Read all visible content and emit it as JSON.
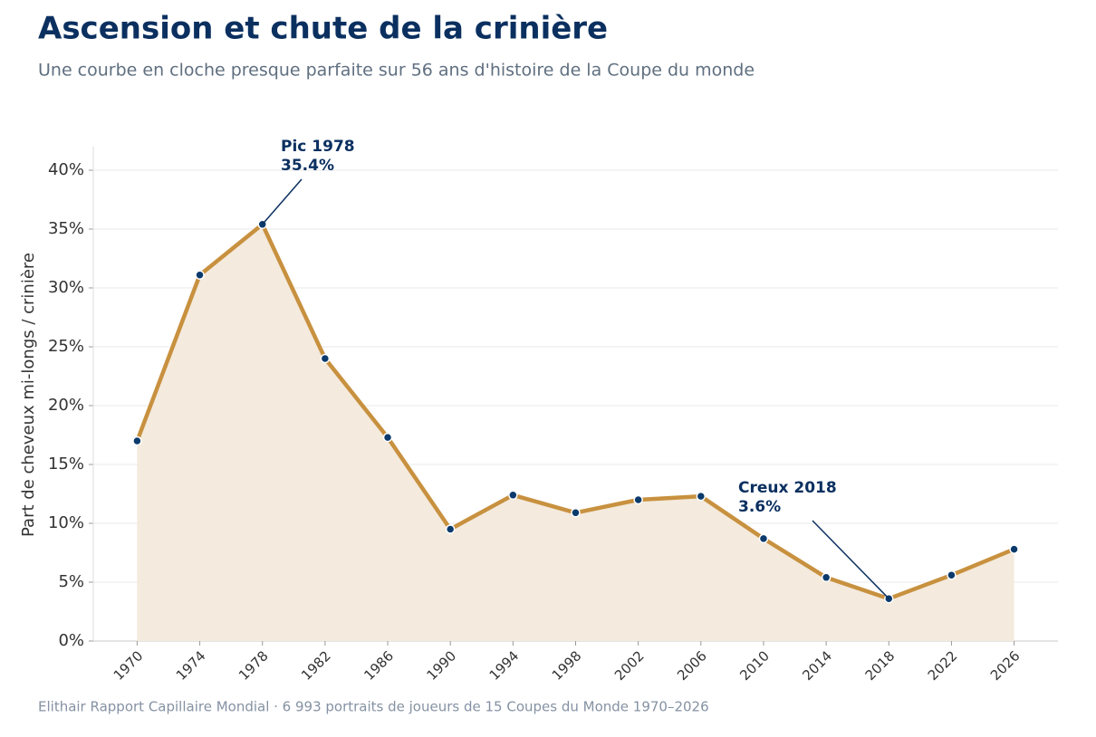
{
  "chart_data": {
    "type": "line",
    "title": "Ascension et chute de la crinière",
    "subtitle": "Une courbe en cloche presque parfaite sur 56 ans d'histoire de la Coupe du monde",
    "ylabel": "Part de cheveux mi-longs / crinière",
    "source": "Elithair Rapport Capillaire Mondial  ·  6 993 portraits de joueurs de 15 Coupes du Monde 1970–2026",
    "x": [
      1970,
      1974,
      1978,
      1982,
      1986,
      1990,
      1994,
      1998,
      2002,
      2006,
      2010,
      2014,
      2018,
      2022,
      2026
    ],
    "series": [
      {
        "name": "Part",
        "color": "#c8913f",
        "fill": "#f4eadd",
        "marker_color": "#0b3a6b",
        "values": [
          17.0,
          31.1,
          35.4,
          24.0,
          17.3,
          9.5,
          12.4,
          10.9,
          12.0,
          12.3,
          8.7,
          5.4,
          3.6,
          5.6,
          7.8
        ]
      }
    ],
    "xlim": [
      1967.2,
      2028.8
    ],
    "xticks": [
      1970,
      1974,
      1978,
      1982,
      1986,
      1990,
      1994,
      1998,
      2002,
      2006,
      2010,
      2014,
      2018,
      2022,
      2026
    ],
    "ylim": [
      0,
      42
    ],
    "yticks": [
      {
        "value": 0,
        "label": "0%"
      },
      {
        "value": 5,
        "label": "5%"
      },
      {
        "value": 10,
        "label": "10%"
      },
      {
        "value": 15,
        "label": "15%"
      },
      {
        "value": 20,
        "label": "20%"
      },
      {
        "value": 25,
        "label": "25%"
      },
      {
        "value": 30,
        "label": "30%"
      },
      {
        "value": 35,
        "label": "35%"
      },
      {
        "value": 40,
        "label": "40%"
      }
    ],
    "grid": true,
    "annotations": [
      [
        "Pic 1978",
        "35.4%"
      ],
      [
        "Creux 2018",
        "3.6%"
      ]
    ]
  }
}
